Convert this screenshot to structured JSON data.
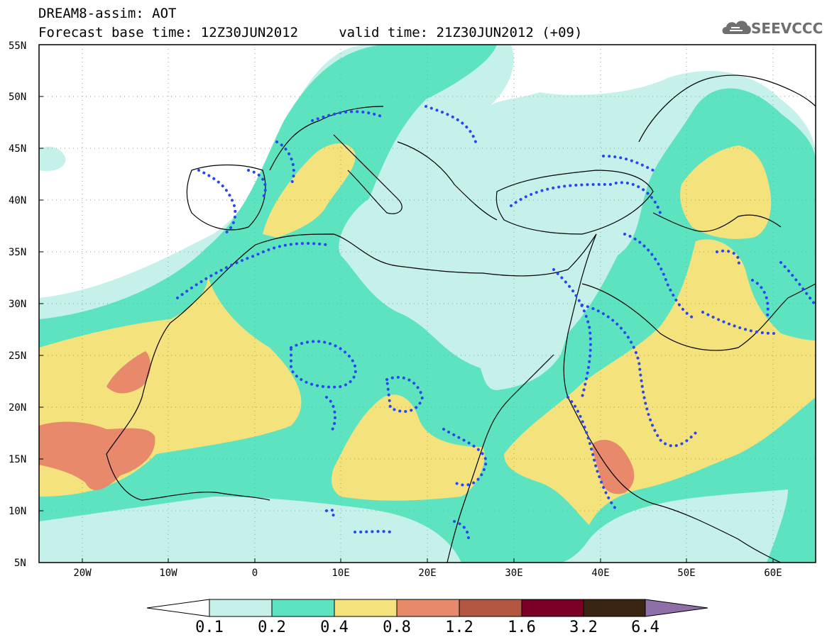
{
  "header": {
    "line1": "DREAM8-assim: AOT",
    "line2": "Forecast base time: 12Z30JUN2012     valid time: 21Z30JUN2012 (+09)"
  },
  "logo": {
    "text": "SEEVCCC",
    "icon": "cloud-logo-icon"
  },
  "map": {
    "lat_labels": [
      "55N",
      "50N",
      "45N",
      "40N",
      "35N",
      "30N",
      "25N",
      "20N",
      "15N",
      "10N",
      "5N"
    ],
    "lon_labels": [
      "20W",
      "10W",
      "0",
      "10E",
      "20E",
      "30E",
      "40E",
      "50E",
      "60E"
    ],
    "lon_range": [
      -25,
      65
    ],
    "lat_range": [
      5,
      55
    ],
    "grid": "dotted"
  },
  "colorbar": {
    "labels": [
      "0.1",
      "0.2",
      "0.4",
      "0.8",
      "1.2",
      "1.6",
      "3.2",
      "6.4"
    ],
    "colors": [
      "#ffffff",
      "#c6f0ea",
      "#5ee3c0",
      "#f4e27c",
      "#e8896b",
      "#b45742",
      "#7a0026",
      "#3a2513",
      "#8f6fa8"
    ]
  },
  "colors": {
    "c01": "#c6f0ea",
    "c02": "#5ee3c0",
    "c04": "#f4e27c",
    "c08": "#e8896b",
    "dots": "#2a46f0"
  }
}
